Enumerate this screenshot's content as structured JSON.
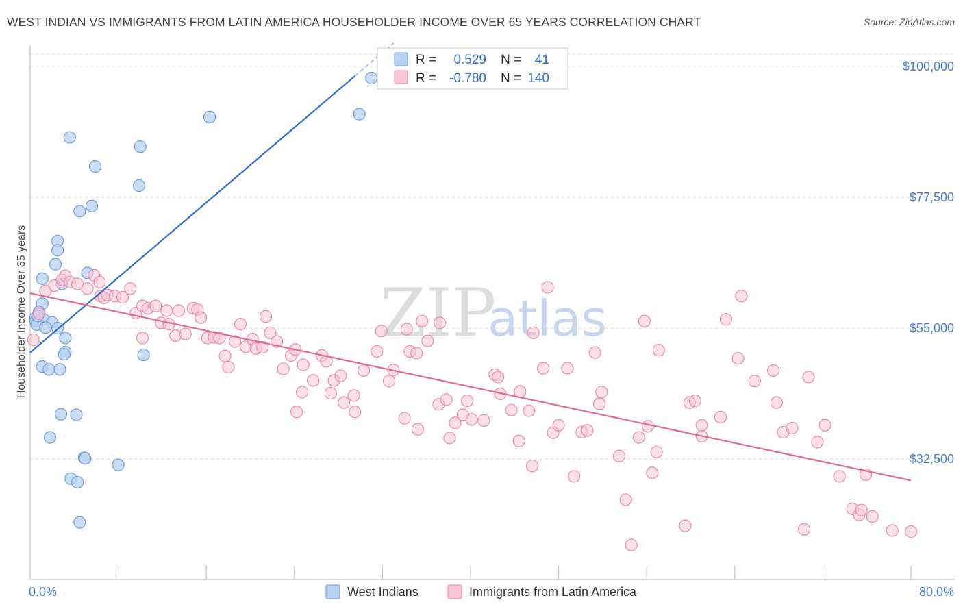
{
  "title": "WEST INDIAN VS IMMIGRANTS FROM LATIN AMERICA HOUSEHOLDER INCOME OVER 65 YEARS CORRELATION CHART",
  "source": "Source: ZipAtlas.com",
  "watermark": {
    "zip": "ZIP",
    "atlas": "atlas"
  },
  "colors": {
    "west_indians_fill": "#b8d2f2",
    "west_indians_stroke": "#6f9fd9",
    "west_indians_line": "#2f6fc9",
    "latin_fill": "#f8c6d6",
    "latin_stroke": "#ea8aaa",
    "latin_line": "#e06a95",
    "grid": "#dddddd",
    "axis_label": "#4a7fc8"
  },
  "legend": {
    "rows": [
      {
        "r_label": "R =",
        "r_value": "0.529",
        "n_label": "N =",
        "n_value": "41"
      },
      {
        "r_label": "R =",
        "r_value": "-0.780",
        "n_label": "N =",
        "n_value": "140"
      }
    ]
  },
  "bottom_legend": [
    "West Indians",
    "Immigrants from Latin America"
  ],
  "chart_data": {
    "type": "scatter",
    "xlabel": "",
    "ylabel": "Householder Income Over 65 years",
    "x_tick_labels": [
      "0.0%",
      "80.0%"
    ],
    "y_tick_labels": [
      "$100,000",
      "$77,500",
      "$55,000",
      "$32,500"
    ],
    "y_ticks": [
      100000,
      77500,
      55000,
      32500
    ],
    "xlim": [
      0,
      80
    ],
    "ylim": [
      12000,
      104000
    ],
    "legend_placement": "top-center",
    "grid": true,
    "series": [
      {
        "name": "West Indians",
        "r": 0.529,
        "n": 41,
        "trend": {
          "x": [
            0.0,
            33.0
          ],
          "y": [
            50800,
            104000
          ]
        },
        "points": [
          [
            31.0,
            98000
          ],
          [
            29.9,
            91800
          ],
          [
            16.3,
            91300
          ],
          [
            3.6,
            87800
          ],
          [
            10.0,
            86200
          ],
          [
            5.9,
            82800
          ],
          [
            9.9,
            79500
          ],
          [
            5.6,
            76000
          ],
          [
            4.5,
            75100
          ],
          [
            2.5,
            70000
          ],
          [
            2.5,
            68400
          ],
          [
            2.3,
            66000
          ],
          [
            5.2,
            64500
          ],
          [
            1.1,
            63500
          ],
          [
            2.9,
            62600
          ],
          [
            1.1,
            59200
          ],
          [
            0.8,
            57800
          ],
          [
            0.5,
            56800
          ],
          [
            1.2,
            56500
          ],
          [
            0.5,
            56200
          ],
          [
            2.0,
            56000
          ],
          [
            0.6,
            55600
          ],
          [
            1.4,
            55100
          ],
          [
            2.5,
            55000
          ],
          [
            3.2,
            53300
          ],
          [
            3.2,
            50900
          ],
          [
            3.1,
            50500
          ],
          [
            10.3,
            50400
          ],
          [
            1.1,
            48400
          ],
          [
            1.7,
            47900
          ],
          [
            2.7,
            47900
          ],
          [
            2.8,
            40200
          ],
          [
            4.2,
            40100
          ],
          [
            1.8,
            36200
          ],
          [
            4.9,
            32700
          ],
          [
            5.0,
            32600
          ],
          [
            8.0,
            31500
          ],
          [
            3.7,
            29100
          ],
          [
            4.3,
            28500
          ],
          [
            4.5,
            21600
          ],
          [
            0.7,
            57100
          ]
        ]
      },
      {
        "name": "Immigrants from Latin America",
        "r": -0.78,
        "n": 140,
        "trend": {
          "x": [
            0.0,
            80.0
          ],
          "y": [
            61000,
            28800
          ]
        },
        "points": [
          [
            0.3,
            53000
          ],
          [
            0.8,
            57500
          ],
          [
            1.4,
            61400
          ],
          [
            2.2,
            62300
          ],
          [
            2.9,
            63300
          ],
          [
            3.2,
            64000
          ],
          [
            3.6,
            62900
          ],
          [
            4.3,
            62600
          ],
          [
            5.2,
            61800
          ],
          [
            5.8,
            64100
          ],
          [
            6.4,
            60500
          ],
          [
            6.7,
            60200
          ],
          [
            6.3,
            62900
          ],
          [
            7.0,
            60700
          ],
          [
            7.7,
            60500
          ],
          [
            8.4,
            60300
          ],
          [
            9.1,
            61800
          ],
          [
            9.6,
            57600
          ],
          [
            10.2,
            58800
          ],
          [
            10.2,
            53300
          ],
          [
            10.7,
            58400
          ],
          [
            11.4,
            58800
          ],
          [
            11.9,
            55900
          ],
          [
            12.4,
            58000
          ],
          [
            12.6,
            55700
          ],
          [
            13.2,
            53700
          ],
          [
            13.5,
            58000
          ],
          [
            14.1,
            54000
          ],
          [
            14.8,
            58400
          ],
          [
            15.2,
            58200
          ],
          [
            15.5,
            56800
          ],
          [
            16.1,
            53300
          ],
          [
            16.7,
            53400
          ],
          [
            17.2,
            53300
          ],
          [
            17.7,
            50200
          ],
          [
            18.0,
            48300
          ],
          [
            18.6,
            52700
          ],
          [
            19.1,
            55700
          ],
          [
            19.6,
            51800
          ],
          [
            20.2,
            53100
          ],
          [
            20.5,
            51500
          ],
          [
            21.1,
            51700
          ],
          [
            21.4,
            57000
          ],
          [
            21.8,
            54200
          ],
          [
            22.4,
            52700
          ],
          [
            23.0,
            48000
          ],
          [
            23.7,
            50300
          ],
          [
            24.1,
            51300
          ],
          [
            24.8,
            48700
          ],
          [
            24.7,
            44000
          ],
          [
            24.2,
            40600
          ],
          [
            25.7,
            46000
          ],
          [
            26.5,
            50300
          ],
          [
            26.9,
            49300
          ],
          [
            27.3,
            43800
          ],
          [
            27.6,
            46000
          ],
          [
            28.2,
            46800
          ],
          [
            28.5,
            42200
          ],
          [
            29.5,
            40600
          ],
          [
            29.4,
            43400
          ],
          [
            30.3,
            47700
          ],
          [
            31.9,
            54500
          ],
          [
            31.5,
            51000
          ],
          [
            32.6,
            45900
          ],
          [
            33.0,
            47800
          ],
          [
            34.2,
            54800
          ],
          [
            34.0,
            39500
          ],
          [
            34.5,
            51000
          ],
          [
            35.1,
            50700
          ],
          [
            35.6,
            56200
          ],
          [
            36.1,
            52800
          ],
          [
            35.2,
            37600
          ],
          [
            37.2,
            55900
          ],
          [
            37.1,
            41900
          ],
          [
            37.8,
            42700
          ],
          [
            38.1,
            36100
          ],
          [
            38.6,
            38700
          ],
          [
            39.3,
            40100
          ],
          [
            39.7,
            42500
          ],
          [
            40.1,
            39300
          ],
          [
            41.2,
            39100
          ],
          [
            42.2,
            47000
          ],
          [
            42.5,
            46600
          ],
          [
            42.7,
            43700
          ],
          [
            43.7,
            40900
          ],
          [
            44.5,
            44100
          ],
          [
            44.4,
            35600
          ],
          [
            45.3,
            40800
          ],
          [
            45.6,
            31300
          ],
          [
            45.7,
            54200
          ],
          [
            46.6,
            48100
          ],
          [
            47.0,
            62000
          ],
          [
            47.5,
            37000
          ],
          [
            48.0,
            38300
          ],
          [
            48.8,
            48100
          ],
          [
            49.4,
            29500
          ],
          [
            50.1,
            37100
          ],
          [
            50.6,
            37400
          ],
          [
            51.3,
            50800
          ],
          [
            51.7,
            42000
          ],
          [
            51.9,
            44000
          ],
          [
            53.5,
            33000
          ],
          [
            54.1,
            25500
          ],
          [
            54.6,
            17700
          ],
          [
            55.3,
            36200
          ],
          [
            55.8,
            56200
          ],
          [
            56.1,
            38100
          ],
          [
            56.9,
            33700
          ],
          [
            56.5,
            30100
          ],
          [
            57.1,
            51200
          ],
          [
            59.5,
            21000
          ],
          [
            59.9,
            42200
          ],
          [
            60.4,
            42500
          ],
          [
            61.0,
            38300
          ],
          [
            61.0,
            36400
          ],
          [
            62.7,
            39700
          ],
          [
            63.2,
            56500
          ],
          [
            64.3,
            49800
          ],
          [
            64.6,
            60500
          ],
          [
            65.8,
            45900
          ],
          [
            67.5,
            47700
          ],
          [
            67.8,
            42200
          ],
          [
            68.4,
            37100
          ],
          [
            69.2,
            37800
          ],
          [
            70.3,
            20400
          ],
          [
            70.7,
            46600
          ],
          [
            71.5,
            35400
          ],
          [
            72.2,
            38300
          ],
          [
            73.5,
            29500
          ],
          [
            74.7,
            23900
          ],
          [
            75.3,
            22900
          ],
          [
            75.5,
            23700
          ],
          [
            75.9,
            29800
          ],
          [
            76.5,
            22600
          ],
          [
            78.3,
            20200
          ],
          [
            80.0,
            20000
          ]
        ]
      }
    ]
  }
}
